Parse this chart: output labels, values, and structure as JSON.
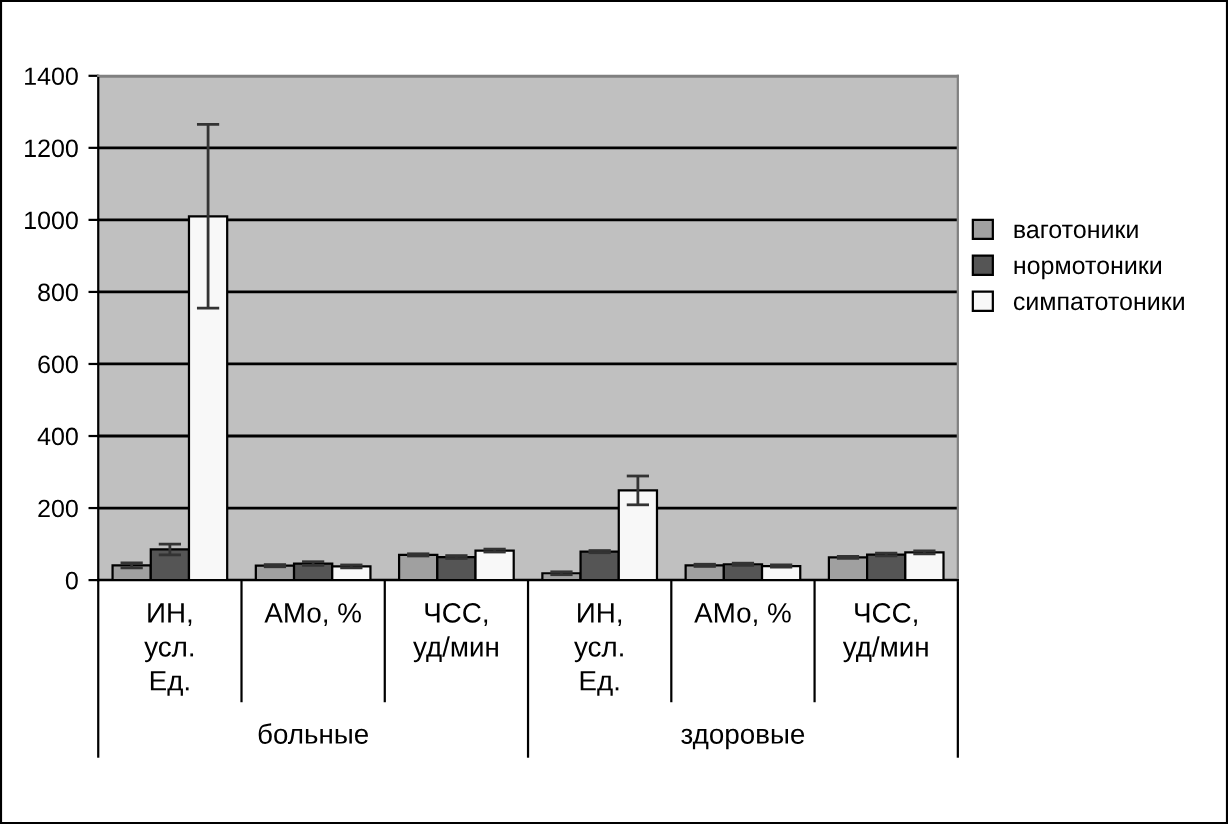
{
  "chart_data": {
    "type": "bar",
    "categories": [
      "ИН,\nусл.\nЕд.",
      "АМо, %",
      "ЧСС,\nуд/мин",
      "ИН,\nусл.\nЕд.",
      "АМо, %",
      "ЧСС,\nуд/мин"
    ],
    "series": [
      {
        "name": "ваготоники",
        "color": "#a0a0a0",
        "values": [
          41,
          40,
          70,
          19,
          41,
          63
        ],
        "errors": [
          7,
          3,
          3,
          4,
          3,
          3
        ]
      },
      {
        "name": "нормотоники",
        "color": "#555555",
        "values": [
          85,
          46,
          64,
          79,
          44,
          71
        ],
        "errors": [
          15,
          5,
          4,
          3,
          3,
          4
        ]
      },
      {
        "name": "симпатотоники",
        "color": "#f8f8f8",
        "values": [
          1010,
          38,
          82,
          249,
          39,
          77
        ],
        "errors": [
          255,
          4,
          4,
          40,
          3,
          4
        ]
      }
    ],
    "annotations": [
      "больные",
      "здоровые"
    ],
    "ylim": [
      0,
      1400
    ],
    "yticks": [
      0,
      200,
      400,
      600,
      800,
      1000,
      1200,
      1400
    ],
    "grid": "y",
    "legend": "right"
  }
}
